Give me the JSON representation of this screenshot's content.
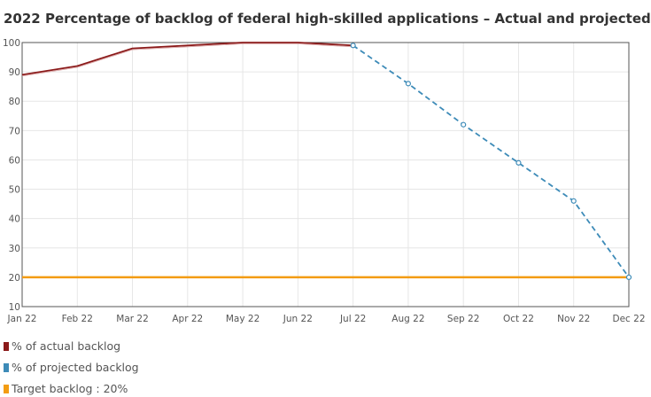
{
  "chart_data": {
    "type": "line",
    "title": "2022 Percentage of backlog of federal high-skilled applications – Actual and projected",
    "categories": [
      "Jan 22",
      "Feb 22",
      "Mar 22",
      "Apr 22",
      "May 22",
      "Jun 22",
      "Jul 22",
      "Aug 22",
      "Sep 22",
      "Oct 22",
      "Nov 22",
      "Dec 22"
    ],
    "ylim": [
      10,
      100
    ],
    "yticks": [
      10,
      20,
      30,
      40,
      50,
      60,
      70,
      80,
      90,
      100
    ],
    "grid": true,
    "legend_position": "bottom-left",
    "series": [
      {
        "name": "% of actual backlog",
        "color": "#8b1a1a",
        "style": "solid",
        "values": [
          89,
          92,
          98,
          99,
          100,
          100,
          99,
          null,
          null,
          null,
          null,
          null
        ]
      },
      {
        "name": "% of projected backlog",
        "color": "#3d8bb8",
        "style": "dashed",
        "markers": true,
        "values": [
          null,
          null,
          null,
          null,
          null,
          null,
          99,
          86,
          72,
          59,
          46,
          20
        ]
      },
      {
        "name": "Target backlog : 20%",
        "color": "#f39c12",
        "style": "solid",
        "values": [
          20,
          20,
          20,
          20,
          20,
          20,
          20,
          20,
          20,
          20,
          20,
          20
        ]
      }
    ]
  }
}
